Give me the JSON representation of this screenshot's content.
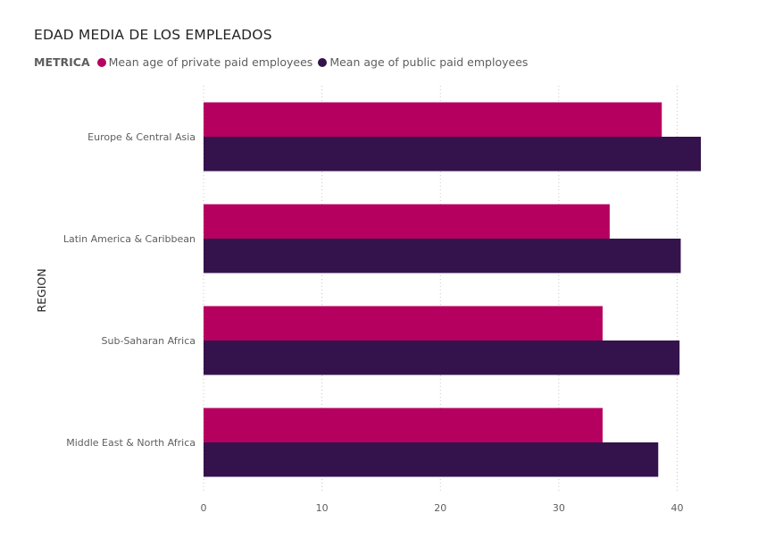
{
  "chart_data": {
    "type": "bar",
    "orientation": "horizontal",
    "title": "EDAD MEDIA DE LOS EMPLEADOS",
    "legend_title": "METRICA",
    "ylabel": "REGION",
    "xlabel": "",
    "categories": [
      "Europe & Central Asia",
      "Latin America & Caribbean",
      "Sub-Saharan Africa",
      "Middle East & North Africa"
    ],
    "series": [
      {
        "name": "Mean age of private paid employees",
        "color": "#b5005f",
        "values": [
          38.7,
          34.3,
          33.7,
          33.7
        ]
      },
      {
        "name": "Mean age of public paid employees",
        "color": "#34134c",
        "values": [
          42.0,
          40.3,
          40.2,
          38.4
        ]
      }
    ],
    "x_ticks": [
      "0",
      "10",
      "20",
      "30",
      "40"
    ],
    "xlim": [
      0,
      42
    ],
    "grid": "vertical-dotted",
    "legend_position": "top-left"
  }
}
